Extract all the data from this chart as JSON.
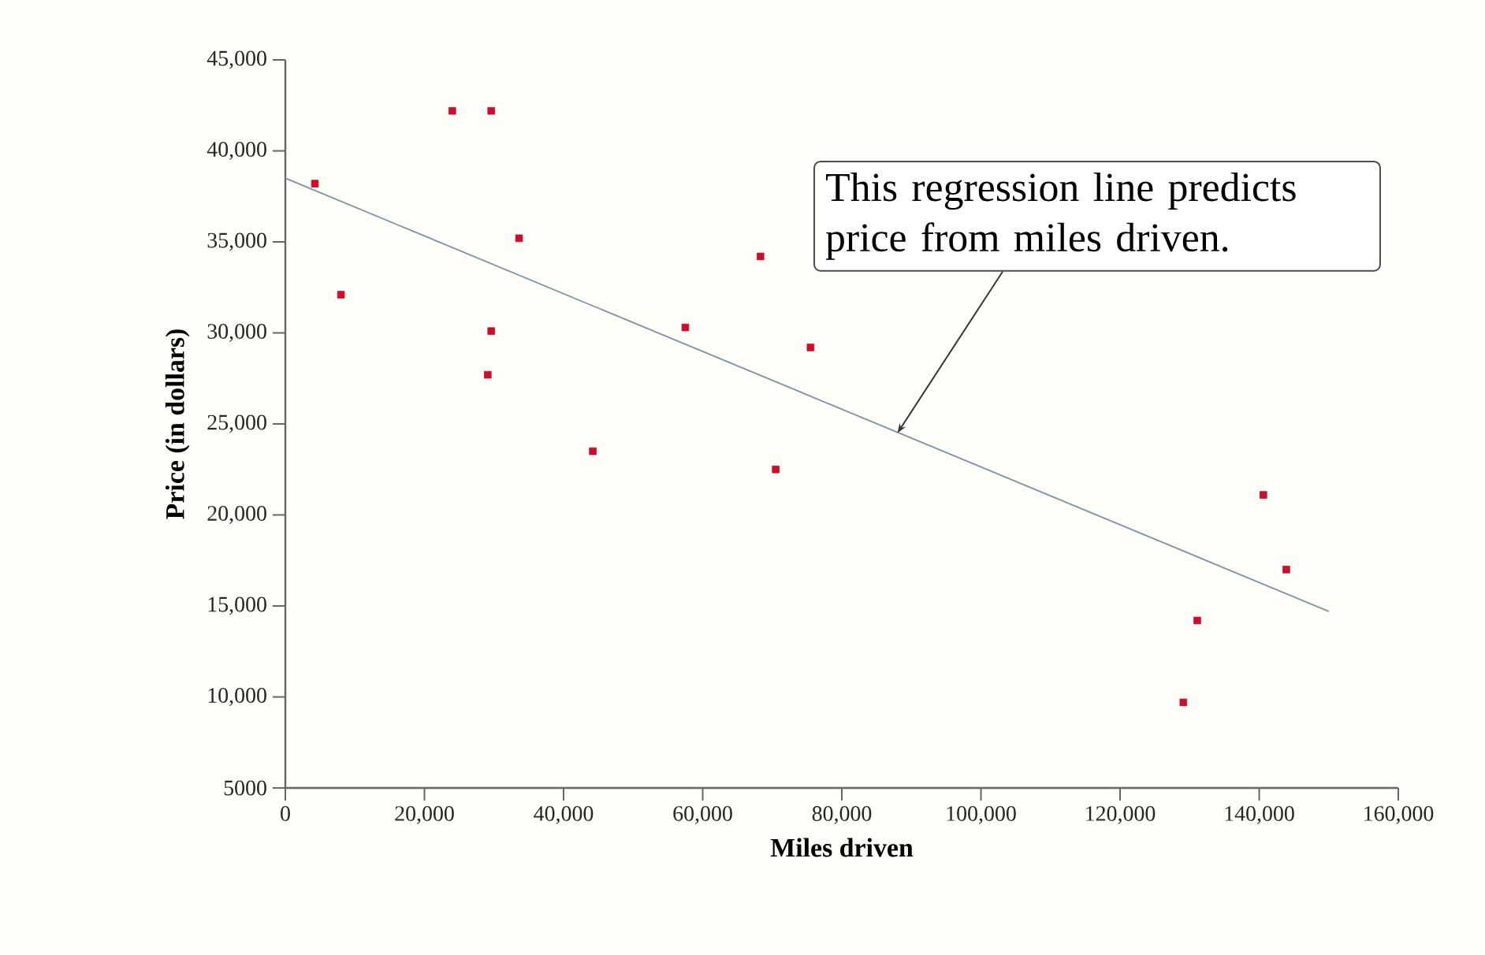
{
  "chart_data": {
    "type": "scatter",
    "xlabel": "Miles driven",
    "ylabel": "Price (in dollars)",
    "xlim": [
      0,
      160000
    ],
    "ylim": [
      5000,
      45000
    ],
    "xticks": [
      0,
      {
        "value": 20000,
        "label": "20,000"
      },
      {
        "value": 40000,
        "label": "40,000"
      },
      {
        "value": 60000,
        "label": "60,000"
      },
      {
        "value": 80000,
        "label": "80,000"
      },
      {
        "value": 100000,
        "label": "100,000"
      },
      {
        "value": 120000,
        "label": "120,000"
      },
      {
        "value": 140000,
        "label": "140,000"
      },
      {
        "value": 160000,
        "label": "160,000"
      }
    ],
    "yticks": [
      5000,
      {
        "value": 10000,
        "label": "10,000"
      },
      {
        "value": 15000,
        "label": "15,000"
      },
      {
        "value": 20000,
        "label": "20,000"
      },
      {
        "value": 25000,
        "label": "25,000"
      },
      {
        "value": 30000,
        "label": "30,000"
      },
      {
        "value": 35000,
        "label": "35,000"
      },
      {
        "value": 40000,
        "label": "40,000"
      },
      {
        "value": 45000,
        "label": "45,000"
      }
    ],
    "marker": "square",
    "series": [
      {
        "color": "#c8102e",
        "x": [
          4250,
          8000,
          24000,
          29600,
          33600,
          29600,
          29100,
          44200,
          57500,
          68300,
          75500,
          70500,
          129100,
          131100,
          140600,
          143900
        ],
        "values": [
          38200,
          32100,
          42200,
          42200,
          35200,
          30100,
          27700,
          23500,
          30300,
          34200,
          29200,
          22500,
          9700,
          14200,
          21100,
          17000
        ]
      },
      {
        "type": "line",
        "marker": "none",
        "color": "#7a92a8",
        "x": [
          0,
          150000
        ],
        "values": [
          38500,
          14700
        ]
      }
    ],
    "annotations": [
      {
        "text": "This regression line predicts price from miles driven.",
        "x": 88000,
        "y": 24500
      }
    ]
  }
}
